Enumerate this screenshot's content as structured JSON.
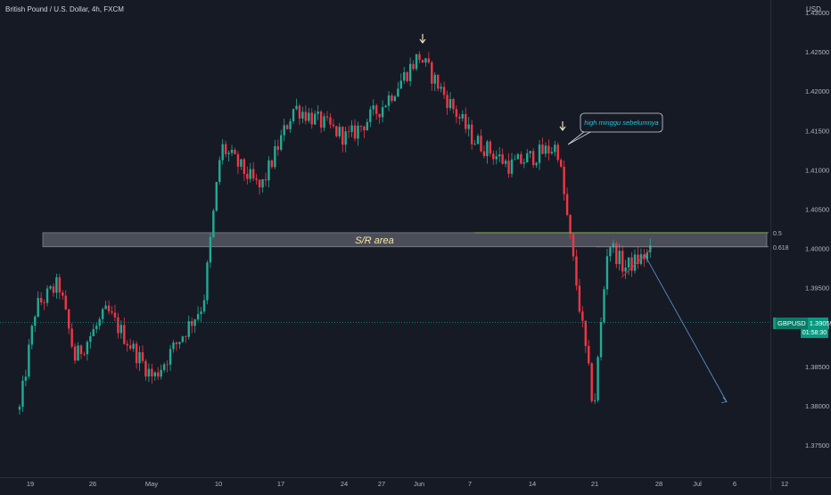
{
  "header": {
    "symbol_title": "British Pound / U.S. Dollar, 4h, FXCM",
    "currency": "USD"
  },
  "colors": {
    "background": "#161a25",
    "up": "#22ab94",
    "down": "#f23645",
    "grid": "#1f2330",
    "axis_text": "#b2b5be",
    "zone_fill": "#5d606b",
    "fib_line": "#9598a1",
    "fib_mid_line": "#8bc34a",
    "arrow": "#e8e3b8",
    "callout_text": "#26c6da",
    "projection": "#5b9bd5",
    "price_tag": "#089981"
  },
  "price_tag": {
    "symbol": "GBPUSD",
    "price": "1.39059",
    "countdown": "01:58:30"
  },
  "annotations": {
    "zone_label": "S/R area",
    "callout": "high minggu sebelumnya",
    "fib_05": "0.5",
    "fib_0618": "0.618"
  },
  "chart_data": {
    "type": "candlestick",
    "title": "British Pound / U.S. Dollar, 4h, FXCM",
    "y_axis_unit": "USD",
    "yticks": [
      "1.37500",
      "1.38000",
      "1.38500",
      "1.39000",
      "1.39500",
      "1.40000",
      "1.40500",
      "1.41000",
      "1.41500",
      "1.42000",
      "1.42500",
      "1.43000"
    ],
    "ylim": [
      1.3715,
      1.4355
    ],
    "xticks": [
      "19",
      "26",
      "May",
      "10",
      "17",
      "24",
      "27",
      "Jun",
      "7",
      "14",
      "21",
      "28",
      "Jul",
      "6",
      "12"
    ],
    "approx_path": [
      {
        "t": "19",
        "price": 1.3795
      },
      {
        "t": "19",
        "price": 1.3925
      },
      {
        "t": "26",
        "price": 1.3955
      },
      {
        "t": "26",
        "price": 1.386
      },
      {
        "t": "May",
        "price": 1.392
      },
      {
        "t": "May",
        "price": 1.3835
      },
      {
        "t": "10",
        "price": 1.393
      },
      {
        "t": "10",
        "price": 1.413
      },
      {
        "t": "17",
        "price": 1.4075
      },
      {
        "t": "17",
        "price": 1.418
      },
      {
        "t": "24",
        "price": 1.414
      },
      {
        "t": "27",
        "price": 1.418
      },
      {
        "t": "Jun",
        "price": 1.4245
      },
      {
        "t": "7",
        "price": 1.414
      },
      {
        "t": "14",
        "price": 1.4105
      },
      {
        "t": "14",
        "price": 1.413
      },
      {
        "t": "21",
        "price": 1.3795
      },
      {
        "t": "21",
        "price": 1.401
      },
      {
        "t": "21",
        "price": 1.3975
      },
      {
        "t": "21",
        "price": 1.3995
      }
    ],
    "current_price": 1.39059,
    "zone": {
      "label": "S/R area",
      "low": 1.4002,
      "high": 1.402
    },
    "fib_levels": [
      {
        "label": "0.5",
        "price": 1.402
      },
      {
        "label": "0.618",
        "price": 1.4002
      }
    ],
    "grid": false,
    "legend": "none"
  }
}
